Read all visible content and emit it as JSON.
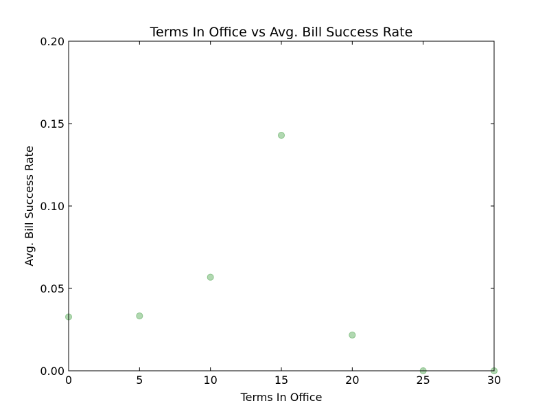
{
  "chart_data": {
    "type": "scatter",
    "title": "Terms In Office vs Avg. Bill Success Rate",
    "xlabel": "Terms In Office",
    "ylabel": "Avg. Bill Success Rate",
    "xlim": [
      0,
      30
    ],
    "ylim": [
      0,
      0.2
    ],
    "x_ticks": [
      0,
      5,
      10,
      15,
      20,
      25,
      30
    ],
    "x_tick_labels": [
      "0",
      "5",
      "10",
      "15",
      "20",
      "25",
      "30"
    ],
    "y_ticks": [
      0,
      0.05,
      0.1,
      0.15,
      0.2
    ],
    "y_tick_labels": [
      "0.00",
      "0.05",
      "0.10",
      "0.15",
      "0.20"
    ],
    "grid": false,
    "marker_color": "#a8d4a8",
    "marker_edge_color": "#8cc48c",
    "marker_shape": "circle",
    "points": [
      {
        "x": 0,
        "y": 0.0327
      },
      {
        "x": 5,
        "y": 0.0333
      },
      {
        "x": 10,
        "y": 0.0568
      },
      {
        "x": 15,
        "y": 0.1429
      },
      {
        "x": 20,
        "y": 0.0217
      },
      {
        "x": 25,
        "y": 0.0
      },
      {
        "x": 30,
        "y": 0.0
      }
    ]
  }
}
